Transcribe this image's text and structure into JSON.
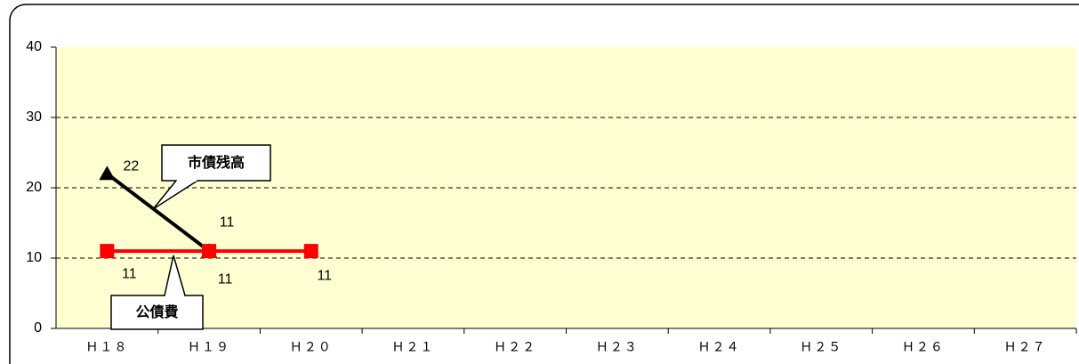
{
  "chart_data": {
    "type": "line",
    "categories": [
      "Ｈ１８",
      "Ｈ１９",
      "Ｈ２０",
      "Ｈ２１",
      "Ｈ２２",
      "Ｈ２３",
      "Ｈ２４",
      "Ｈ２５",
      "Ｈ２６",
      "Ｈ２７"
    ],
    "series": [
      {
        "name": "市債残高",
        "color": "#000000",
        "marker": "triangle",
        "values": [
          22,
          11,
          null,
          null,
          null,
          null,
          null,
          null,
          null,
          null
        ]
      },
      {
        "name": "公債費",
        "color": "#ff0000",
        "marker": "square",
        "values": [
          11,
          11,
          11,
          null,
          null,
          null,
          null,
          null,
          null,
          null
        ]
      }
    ],
    "ylim": [
      0,
      40
    ],
    "yticks": [
      0,
      10,
      20,
      30,
      40
    ],
    "grid": true
  }
}
